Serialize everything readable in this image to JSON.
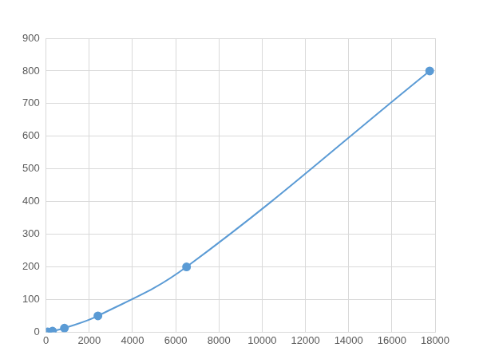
{
  "chart_data": {
    "type": "scatter",
    "x": [
      80,
      300,
      850,
      2400,
      6500,
      17750
    ],
    "values": [
      0.78,
      3.12,
      12.5,
      50,
      200,
      800
    ],
    "color": "#5b9bd5",
    "marker": "circle",
    "line_style": "smooth",
    "xlim": [
      0,
      18000
    ],
    "xticks": [
      0,
      2000,
      4000,
      6000,
      8000,
      10000,
      12000,
      14000,
      16000,
      18000
    ],
    "ylim": [
      0,
      900
    ],
    "yticks": [
      0,
      100,
      200,
      300,
      400,
      500,
      600,
      700,
      800,
      900
    ],
    "grid": true
  }
}
